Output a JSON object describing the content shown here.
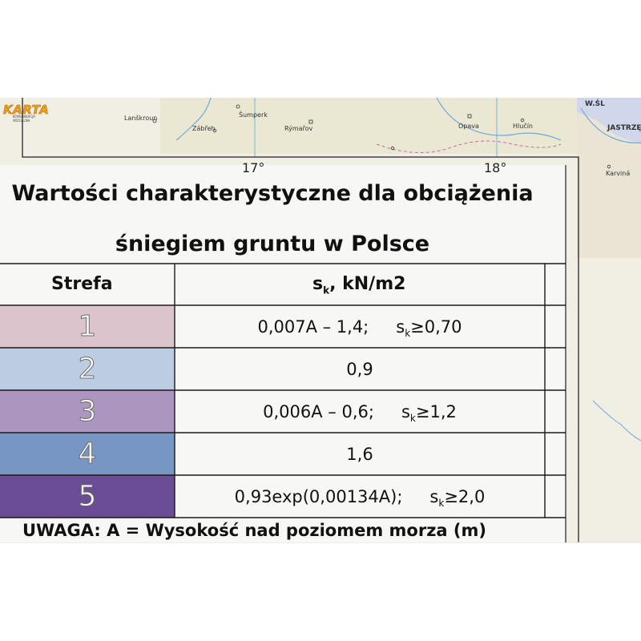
{
  "logo": {
    "name": "KARTA",
    "subtitle": "KOMUNIKACJA WIZUALNA"
  },
  "map": {
    "towns": [
      "Lanškroun",
      "Šumperk",
      "Zábřeh",
      "Rýmařov",
      "Opava",
      "Hlučín",
      "Karviná",
      "JASTRZĘ",
      "W.ŚL"
    ],
    "longitudes": [
      "17°",
      "18°"
    ]
  },
  "legend": {
    "title_line1": "Wartości charakterystyczne dla obciążenia",
    "title_line2": "śniegiem gruntu w Polsce",
    "col_zone": "Strefa",
    "col_value_main": "s",
    "col_value_sub": "k",
    "col_value_rest": ", kN/m2",
    "rows": [
      {
        "zone": "1",
        "color": "#dcc4cc",
        "formula": "0,007A – 1,4;",
        "cond_main": "s",
        "cond_sub": "k",
        "cond_rest": "≥0,70"
      },
      {
        "zone": "2",
        "color": "#bccde2",
        "formula": "0,9",
        "cond_main": "",
        "cond_sub": "",
        "cond_rest": ""
      },
      {
        "zone": "3",
        "color": "#ac96bf",
        "formula": "0,006A – 0,6;",
        "cond_main": "s",
        "cond_sub": "k",
        "cond_rest": "≥1,2"
      },
      {
        "zone": "4",
        "color": "#7896c4",
        "formula": "1,6",
        "cond_main": "",
        "cond_sub": "",
        "cond_rest": ""
      },
      {
        "zone": "5",
        "color": "#6a4d95",
        "formula": "0,93exp(0,00134A);",
        "cond_main": "s",
        "cond_sub": "k",
        "cond_rest": "≥2,0"
      }
    ],
    "note": "UWAGA: A = Wysokość nad poziomem morza (m)"
  }
}
